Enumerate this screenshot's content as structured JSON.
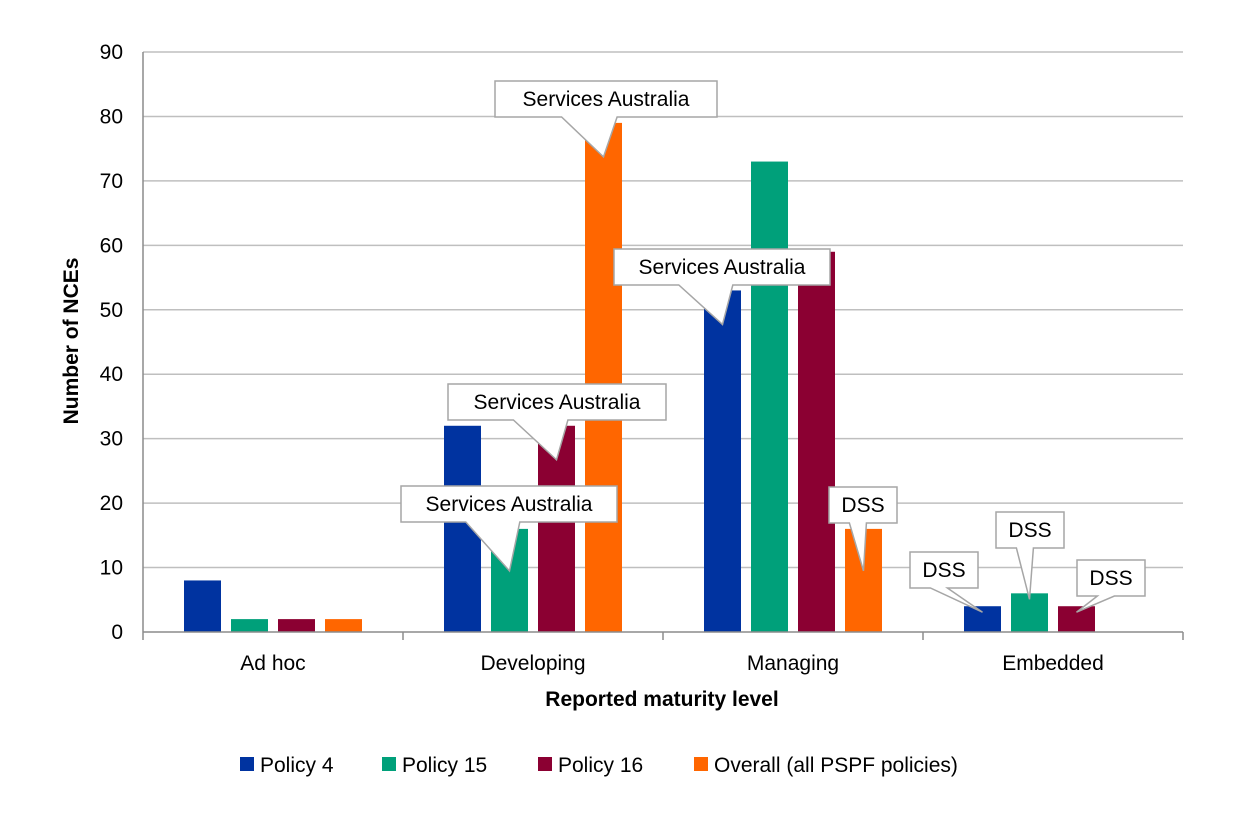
{
  "chart_data": {
    "type": "bar",
    "title": "",
    "xlabel": "Reported maturity level",
    "ylabel": "Number of NCEs",
    "ylim": [
      0,
      90
    ],
    "yticks": [
      0,
      10,
      20,
      30,
      40,
      50,
      60,
      70,
      80,
      90
    ],
    "grid": true,
    "legend_position": "bottom",
    "categories": [
      "Ad hoc",
      "Developing",
      "Managing",
      "Embedded"
    ],
    "series": [
      {
        "name": "Policy 4",
        "color": "#0033a0",
        "values": [
          8,
          32,
          53,
          4
        ]
      },
      {
        "name": "Policy 15",
        "color": "#00a07a",
        "values": [
          2,
          16,
          73,
          6
        ]
      },
      {
        "name": "Policy 16",
        "color": "#8b0032",
        "values": [
          2,
          32,
          59,
          4
        ]
      },
      {
        "name": "Overall (all PSPF policies)",
        "color": "#ff6600",
        "values": [
          2,
          79,
          16,
          0
        ]
      }
    ],
    "annotations": [
      {
        "text": "Services Australia",
        "category": 1,
        "series": 3,
        "value": 79
      },
      {
        "text": "Services Australia",
        "category": 1,
        "series": 2,
        "value": 32
      },
      {
        "text": "Services Australia",
        "category": 1,
        "series": 1,
        "value": 16
      },
      {
        "text": "Services Australia",
        "category": 2,
        "series": 0,
        "value": 53
      },
      {
        "text": "DSS",
        "category": 2,
        "series": 3,
        "value": 16
      },
      {
        "text": "DSS",
        "category": 3,
        "series": 0,
        "value": 4
      },
      {
        "text": "DSS",
        "category": 3,
        "series": 1,
        "value": 6
      },
      {
        "text": "DSS",
        "category": 3,
        "series": 2,
        "value": 4
      }
    ]
  }
}
